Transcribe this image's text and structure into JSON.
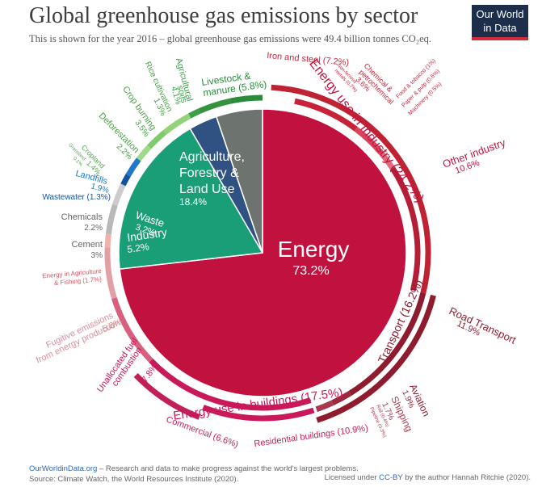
{
  "header": {
    "title": "Global greenhouse gas emissions by sector",
    "subtitle": "This is shown for the year 2016 – global greenhouse gas emissions were 49.4 billion tonnes CO₂eq.",
    "logo_line1": "Our World",
    "logo_line2": "in Data"
  },
  "footer": {
    "site": "OurWorldinData.org",
    "tagline": " – Research and data to make progress against the world's largest problems.",
    "source": "Source: Climate Watch, the World Resources Institute (2020).",
    "license_prefix": "Licensed under ",
    "license_link": "CC-BY",
    "license_suffix": " by the author Hannah Ritchie (2020)."
  },
  "colors": {
    "energy": "#c1123f",
    "agriculture": "#1a9e77",
    "waste": "#2f5282",
    "industry": "#6d746f",
    "industry_energy_ring": "#bf2333",
    "transport_ring": "#8e1b2e",
    "buildings_ring": "#c9195a",
    "fugitive_ring": "#e29fa6",
    "agri_ring": "#2c8a3b",
    "landuse_light": "#7fcb6b",
    "landfills": "#1f78c8",
    "wastewater": "#1253a0",
    "industry_grey": "#b8b8b8"
  },
  "chart_data": {
    "type": "pie",
    "title": "Global greenhouse gas emissions by sector",
    "total": "49.4 billion tonnes CO₂eq.",
    "year": 2016,
    "sectors": [
      {
        "name": "Energy",
        "value": 73.2,
        "label": "73.2%"
      },
      {
        "name": "Agriculture, Forestry & Land Use",
        "value": 18.4,
        "label": "18.4%"
      },
      {
        "name": "Waste",
        "value": 3.2,
        "label": "3.2%"
      },
      {
        "name": "Industry",
        "value": 5.2,
        "label": "5.2%"
      }
    ],
    "energy_breakdown": [
      {
        "name": "Energy use in Industry",
        "value": 24.2,
        "label": "(24.2%)"
      },
      {
        "name": "Transport",
        "value": 16.2,
        "label": "(16.2%)"
      },
      {
        "name": "Energy use in buildings",
        "value": 17.5,
        "label": "(17.5%)"
      },
      {
        "name": "Unallocated fuel combustion",
        "value": 7.8
      },
      {
        "name": "Fugitive emissions from energy production",
        "value": 5.8
      },
      {
        "name": "Energy in Agriculture & Fishing",
        "value": 1.7
      }
    ],
    "subsectors": [
      {
        "name": "Iron and steel",
        "value": 7.2,
        "group": "Energy use in Industry"
      },
      {
        "name": "Non-ferrous metals",
        "value": 0.7,
        "group": "Energy use in Industry"
      },
      {
        "name": "Chemical & petrochemical",
        "value": 3.6,
        "group": "Energy use in Industry"
      },
      {
        "name": "Food & tobacco",
        "value": 1.0,
        "group": "Energy use in Industry"
      },
      {
        "name": "Paper & pulp",
        "value": 0.6,
        "group": "Energy use in Industry"
      },
      {
        "name": "Machinery",
        "value": 0.5,
        "group": "Energy use in Industry"
      },
      {
        "name": "Other industry",
        "value": 10.6,
        "group": "Energy use in Industry"
      },
      {
        "name": "Road Transport",
        "value": 11.9,
        "group": "Transport"
      },
      {
        "name": "Aviation",
        "value": 1.9,
        "group": "Transport"
      },
      {
        "name": "Shipping",
        "value": 1.7,
        "group": "Transport"
      },
      {
        "name": "Rail",
        "value": 0.4,
        "group": "Transport"
      },
      {
        "name": "Pipeline",
        "value": 0.3,
        "group": "Transport"
      },
      {
        "name": "Residential buildings",
        "value": 10.9,
        "group": "Energy use in buildings"
      },
      {
        "name": "Commercial",
        "value": 6.6,
        "group": "Energy use in buildings"
      },
      {
        "name": "Unallocated fuel combustion",
        "value": 7.8,
        "group": "Energy"
      },
      {
        "name": "Fugitive emissions from energy production",
        "value": 5.8,
        "group": "Energy"
      },
      {
        "name": "Energy in Agriculture & Fishing",
        "value": 1.7,
        "group": "Energy"
      },
      {
        "name": "Cement",
        "value": 3.0,
        "group": "Industry"
      },
      {
        "name": "Chemicals",
        "value": 2.2,
        "group": "Industry"
      },
      {
        "name": "Wastewater",
        "value": 1.3,
        "group": "Waste"
      },
      {
        "name": "Landfills",
        "value": 1.9,
        "group": "Waste"
      },
      {
        "name": "Grassland",
        "value": 0.1,
        "group": "Agriculture, Forestry & Land Use"
      },
      {
        "name": "Cropland",
        "value": 1.4,
        "group": "Agriculture, Forestry & Land Use"
      },
      {
        "name": "Deforestation",
        "value": 2.2,
        "group": "Agriculture, Forestry & Land Use"
      },
      {
        "name": "Crop burning",
        "value": 3.5,
        "group": "Agriculture, Forestry & Land Use"
      },
      {
        "name": "Rice cultivation",
        "value": 1.3,
        "group": "Agriculture, Forestry & Land Use"
      },
      {
        "name": "Agricultural soils",
        "value": 4.1,
        "group": "Agriculture, Forestry & Land Use"
      },
      {
        "name": "Livestock & manure",
        "value": 5.8,
        "group": "Agriculture, Forestry & Land Use"
      }
    ],
    "labels": {
      "energy": "Energy",
      "energy_pct": "73.2%",
      "agri_1": "Agriculture,",
      "agri_2": "Forestry &",
      "agri_3": "Land Use",
      "agri_pct": "18.4%",
      "waste": "Waste",
      "waste_pct": "3.2%",
      "industry": "Industry",
      "industry_pct": "5.2%",
      "ring_industry": "Energy use in Industry (24.2%)",
      "ring_transport": "Transport (16.2%)",
      "ring_buildings": "Energy use in buildings (17.5%)",
      "iron_steel": "Iron and steel (7.2%)",
      "nonferrous_1": "Non-ferrous",
      "nonferrous_2": "metals (0.7%)",
      "chem_petro_1": "Chemical &",
      "chem_petro_2": "petrochemical",
      "chem_petro_3": "3.6%",
      "food": "Food & tobacco (1%)",
      "paper": "Paper & pulp (0.6%)",
      "machinery": "Machinery (0.5%)",
      "other_industry": "Other industry",
      "other_industry_pct": "10.6%",
      "road": "Road Transport",
      "road_pct": "11.9%",
      "aviation": "Aviation",
      "aviation_pct": "1.9%",
      "shipping": "Shipping",
      "shipping_pct": "1.7%",
      "rail": "Rail (0.4%)",
      "pipeline": "Pipeline (0.3%)",
      "residential": "Residential buildings (10.9%)",
      "commercial": "Commercial (6.6%)",
      "unalloc_1": "Unallocated fuel",
      "unalloc_2": "combustion",
      "unalloc_3": "7.8%",
      "fugitive_1": "Fugitive emissions",
      "fugitive_2": "from energy production",
      "fugitive_3": "5.8%",
      "energy_agri_1": "Energy in Agriculture",
      "energy_agri_2": "& Fishing (1.7%)",
      "cement": "Cement",
      "cement_pct": "3%",
      "chemicals": "Chemicals",
      "chemicals_pct": "2.2%",
      "wastewater": "Wastewater (1.3%)",
      "landfills": "Landfills",
      "landfills_pct": "1.9%",
      "grassland": "Grassland",
      "grassland_pct": "0.1%",
      "cropland": "Cropland",
      "cropland_pct": "1.4%",
      "deforestation": "Deforestation",
      "deforestation_pct": "2.2%",
      "crop_burning": "Crop burning",
      "crop_burning_pct": "3.5%",
      "rice": "Rice cultivation",
      "rice_pct": "1.3%",
      "soils_1": "Agricultural",
      "soils_2": "soils",
      "soils_3": "4.1%",
      "livestock_1": "Livestock &",
      "livestock_2": "manure (5.8%)"
    }
  }
}
